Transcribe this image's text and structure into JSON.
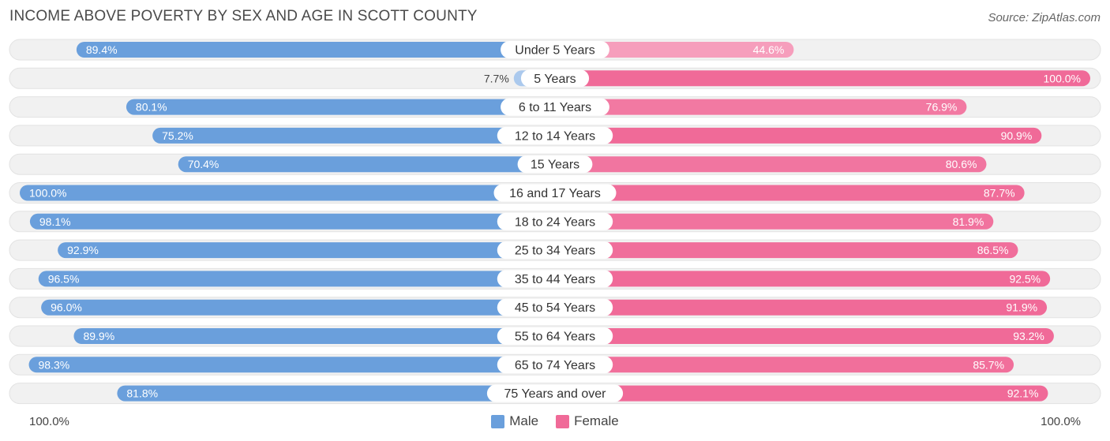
{
  "title": "INCOME ABOVE POVERTY BY SEX AND AGE IN SCOTT COUNTY",
  "source": "Source: ZipAtlas.com",
  "colors": {
    "male": "#6a9fdc",
    "male_light": "#aecbee",
    "female": "#f06a98",
    "female_light": "#f7a9c4",
    "track": "#f1f1f1"
  },
  "axis": {
    "left_label": "100.0%",
    "right_label": "100.0%"
  },
  "legend": {
    "male": "Male",
    "female": "Female"
  },
  "chart_data": {
    "type": "bar",
    "orientation": "horizontal-diverging",
    "title": "INCOME ABOVE POVERTY BY SEX AND AGE IN SCOTT COUNTY",
    "xlim": [
      0,
      100
    ],
    "categories": [
      "Under 5 Years",
      "5 Years",
      "6 to 11 Years",
      "12 to 14 Years",
      "15 Years",
      "16 and 17 Years",
      "18 to 24 Years",
      "25 to 34 Years",
      "35 to 44 Years",
      "45 to 54 Years",
      "55 to 64 Years",
      "65 to 74 Years",
      "75 Years and over"
    ],
    "series": [
      {
        "name": "Male",
        "values": [
          89.4,
          7.7,
          80.1,
          75.2,
          70.4,
          100.0,
          98.1,
          92.9,
          96.5,
          96.0,
          89.9,
          98.3,
          81.8
        ],
        "labels": [
          "89.4%",
          "7.7%",
          "80.1%",
          "75.2%",
          "70.4%",
          "100.0%",
          "98.1%",
          "92.9%",
          "96.5%",
          "96.0%",
          "89.9%",
          "98.3%",
          "81.8%"
        ]
      },
      {
        "name": "Female",
        "values": [
          44.6,
          100.0,
          76.9,
          90.9,
          80.6,
          87.7,
          81.9,
          86.5,
          92.5,
          91.9,
          93.2,
          85.7,
          92.1
        ],
        "labels": [
          "44.6%",
          "100.0%",
          "76.9%",
          "90.9%",
          "80.6%",
          "87.7%",
          "81.9%",
          "86.5%",
          "92.5%",
          "91.9%",
          "93.2%",
          "85.7%",
          "92.1%"
        ]
      }
    ]
  }
}
